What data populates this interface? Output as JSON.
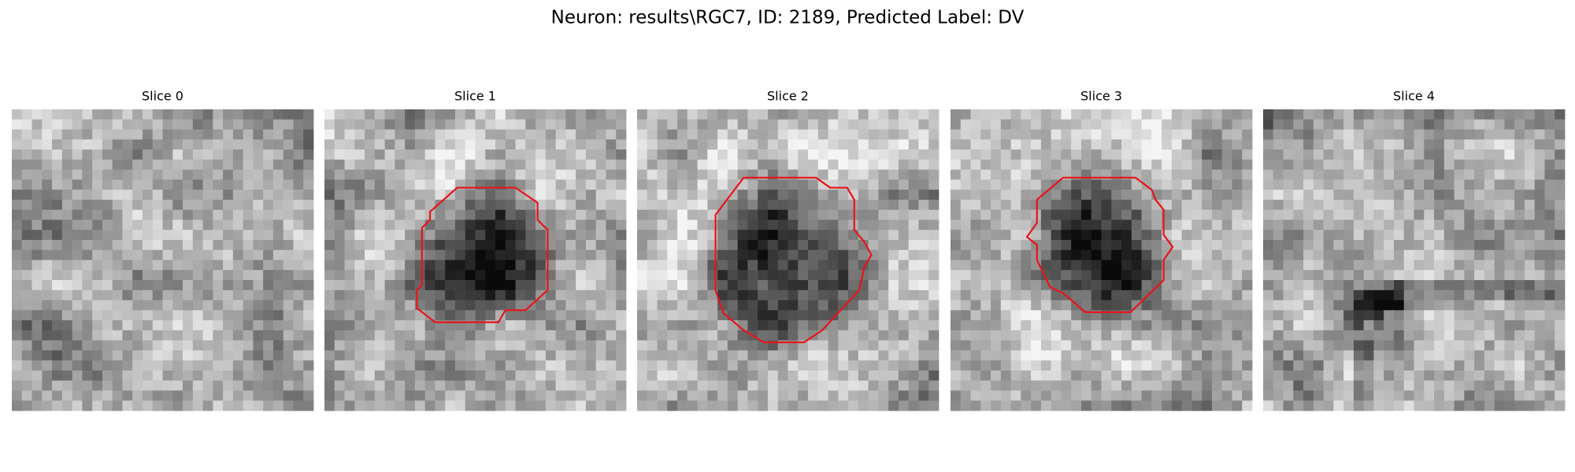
{
  "figure": {
    "title": "Neuron: results\\RGC7, ID: 2189, Predicted Label: DV",
    "panels": [
      {
        "title": "Slice 0"
      },
      {
        "title": "Slice 1"
      },
      {
        "title": "Slice 2"
      },
      {
        "title": "Slice 3"
      },
      {
        "title": "Slice 4"
      }
    ]
  }
}
